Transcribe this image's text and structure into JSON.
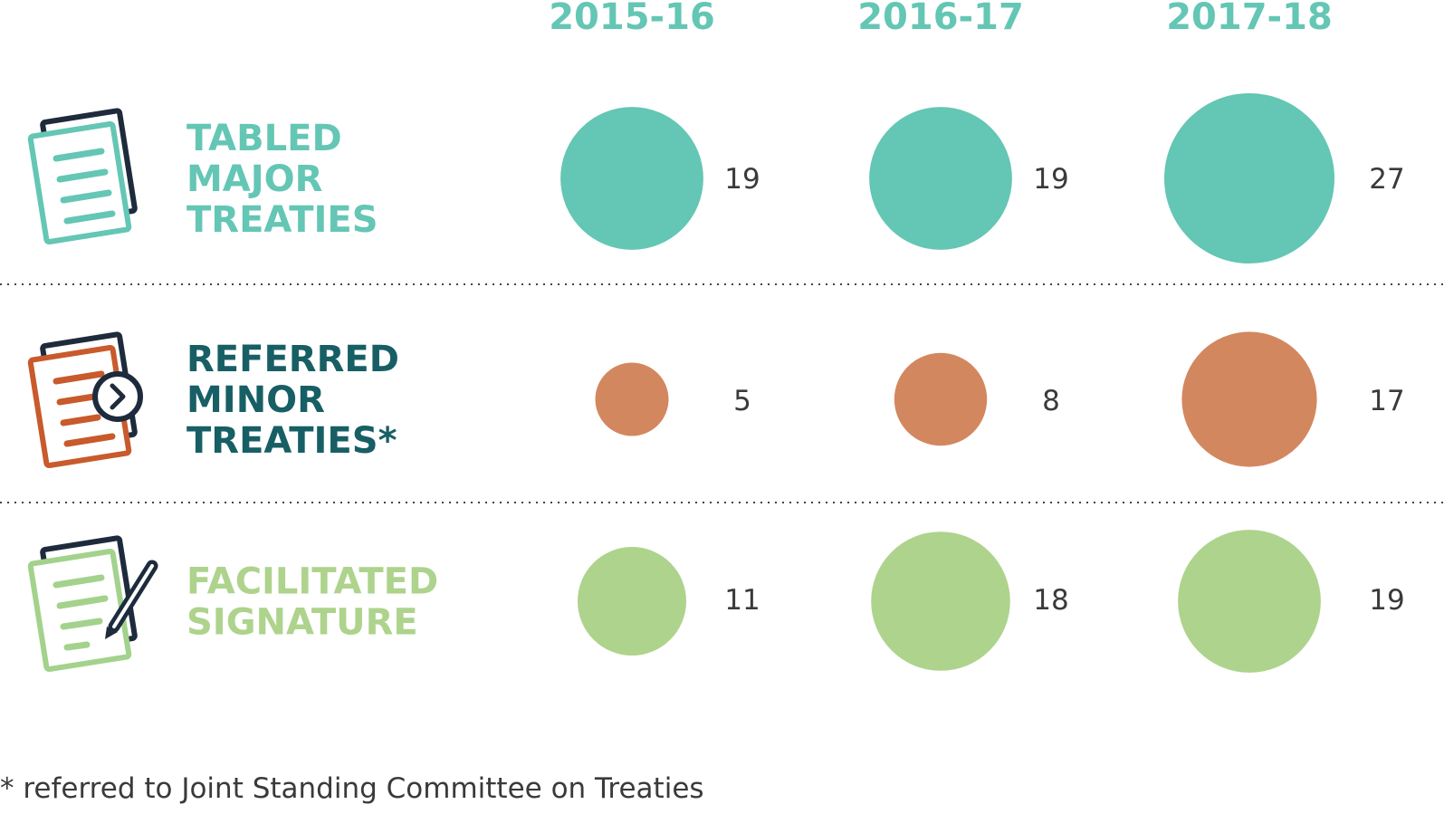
{
  "colors": {
    "navy": "#1d2b3c",
    "teal": "#64c6b4",
    "teal_dark": "#175f65",
    "orange": "#d3875f",
    "orange_icon": "#c85a2c",
    "green": "#aed38c",
    "green_icon": "#a3d28c",
    "divider": "#444444"
  },
  "chart_data": {
    "type": "bubble",
    "columns": [
      "2015-16",
      "2016-17",
      "2017-18"
    ],
    "rows": [
      {
        "label_lines": [
          "TABLED",
          "MAJOR",
          "TREATIES"
        ],
        "values": [
          19,
          19,
          27
        ],
        "color": "#64c6b4",
        "label_color": "#64c6b4",
        "icon": "document-stack-icon"
      },
      {
        "label_lines": [
          "REFERRED",
          "MINOR",
          "TREATIES*"
        ],
        "values": [
          5,
          8,
          17
        ],
        "color": "#d3875f",
        "label_color": "#175f65",
        "icon": "document-referral-icon"
      },
      {
        "label_lines": [
          "FACILITATED",
          "SIGNATURE"
        ],
        "values": [
          11,
          18,
          19
        ],
        "color": "#aed38c",
        "label_color": "#aed38c",
        "icon": "document-signature-icon"
      }
    ],
    "legend": "none",
    "grid": false
  },
  "footnote": "* referred to Joint Standing Committee on Treaties"
}
